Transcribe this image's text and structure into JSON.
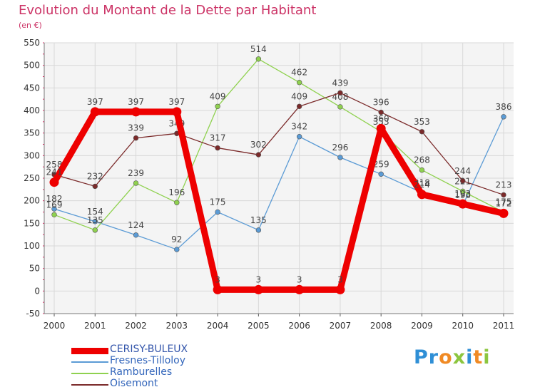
{
  "chart_data": {
    "type": "line",
    "title": "Evolution du Montant de la Dette par Habitant",
    "subtitle": "(en €)",
    "xlabel": "",
    "ylabel": "",
    "categories": [
      "2000",
      "2001",
      "2002",
      "2003",
      "2004",
      "2005",
      "2006",
      "2007",
      "2008",
      "2009",
      "2010",
      "2011"
    ],
    "ylim": [
      -50,
      550
    ],
    "yticks": [
      "-50",
      "0",
      "50",
      "100",
      "150",
      "200",
      "250",
      "300",
      "350",
      "400",
      "450",
      "500",
      "550"
    ],
    "grid": true,
    "legend_position": "bottom-left",
    "series": [
      {
        "name": "Fresnes-Tilloloy",
        "color": "#5b9bd5",
        "emphasis": false,
        "values": [
          182,
          154,
          124,
          92,
          175,
          135,
          342,
          296,
          259,
          218,
          190,
          386
        ],
        "labels": [
          "182",
          "154",
          "124",
          "92",
          "175",
          "135",
          "342",
          "296",
          "259",
          "218",
          "190",
          "386"
        ]
      },
      {
        "name": "Ramburelles",
        "color": "#8fd14f",
        "emphasis": false,
        "values": [
          169,
          135,
          239,
          196,
          409,
          514,
          462,
          408,
          353,
          268,
          221,
          175
        ],
        "labels": [
          "169",
          "135",
          "239",
          "196",
          "409",
          "514",
          "462",
          "408",
          "353",
          "268",
          "221",
          "175"
        ]
      },
      {
        "name": "Oisemont",
        "color": "#7b2a2a",
        "emphasis": false,
        "values": [
          258,
          232,
          339,
          349,
          317,
          302,
          409,
          439,
          396,
          353,
          244,
          213
        ],
        "labels": [
          "258",
          "232",
          "339",
          "349",
          "317",
          "302",
          "409",
          "439",
          "396",
          "353",
          "244",
          "213"
        ]
      },
      {
        "name": "CERISY-BULEUX",
        "color": "#ee0000",
        "emphasis": true,
        "values": [
          241,
          397,
          397,
          397,
          3,
          3,
          3,
          3,
          360,
          214,
          193,
          172
        ],
        "labels": [
          "241",
          "397",
          "397",
          "397",
          "3",
          "3",
          "3",
          "3",
          "360",
          "214",
          "193",
          "172"
        ]
      }
    ],
    "legend": [
      "CERISY-BULEUX",
      "Fresnes-Tilloloy",
      "Ramburelles",
      "Oisemont"
    ]
  },
  "brand": {
    "letters": [
      {
        "char": "P",
        "color": "#2f8fd6"
      },
      {
        "char": "r",
        "color": "#2f8fd6"
      },
      {
        "char": "o",
        "color": "#f08a24"
      },
      {
        "char": "x",
        "color": "#8cc63f"
      },
      {
        "char": "i",
        "color": "#2f8fd6"
      },
      {
        "char": "t",
        "color": "#f08a24"
      },
      {
        "char": "i",
        "color": "#8cc63f"
      }
    ]
  }
}
